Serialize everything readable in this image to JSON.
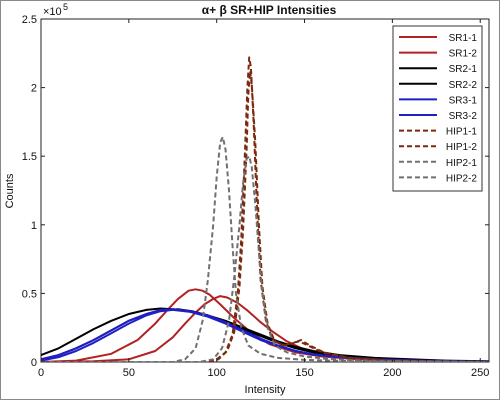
{
  "chart_data": {
    "type": "line",
    "title": "α+ β SR+HIP Intensities",
    "xlabel": "Intensity",
    "ylabel": "Counts",
    "y_exponent_label": "×10",
    "y_exponent_power": "5",
    "xlim": [
      0,
      255
    ],
    "ylim": [
      0,
      2.5
    ],
    "x_ticks": [
      0,
      50,
      100,
      150,
      200,
      250
    ],
    "y_ticks": [
      0,
      0.5,
      1,
      1.5,
      2,
      2.5
    ],
    "x_tick_labels": [
      "0",
      "50",
      "100",
      "150",
      "200",
      "250"
    ],
    "y_tick_labels": [
      "0",
      "0.5",
      "1",
      "1.5",
      "2",
      "2.5"
    ],
    "grid": false,
    "legend_position": "top-right",
    "series": [
      {
        "name": "SR1-1",
        "color": "#b22222",
        "dash": "solid",
        "points": [
          [
            0,
            0
          ],
          [
            20,
            0.01
          ],
          [
            40,
            0.06
          ],
          [
            55,
            0.16
          ],
          [
            65,
            0.28
          ],
          [
            72,
            0.38
          ],
          [
            78,
            0.46
          ],
          [
            84,
            0.52
          ],
          [
            88,
            0.53
          ],
          [
            92,
            0.52
          ],
          [
            96,
            0.49
          ],
          [
            102,
            0.42
          ],
          [
            110,
            0.32
          ],
          [
            120,
            0.21
          ],
          [
            130,
            0.13
          ],
          [
            145,
            0.07
          ],
          [
            160,
            0.04
          ],
          [
            180,
            0.02
          ],
          [
            200,
            0.01
          ],
          [
            230,
            0.005
          ],
          [
            255,
            0.003
          ]
        ]
      },
      {
        "name": "SR1-2",
        "color": "#b22222",
        "dash": "solid",
        "points": [
          [
            0,
            0
          ],
          [
            30,
            0.005
          ],
          [
            50,
            0.02
          ],
          [
            65,
            0.08
          ],
          [
            75,
            0.18
          ],
          [
            82,
            0.28
          ],
          [
            88,
            0.36
          ],
          [
            93,
            0.42
          ],
          [
            98,
            0.46
          ],
          [
            102,
            0.48
          ],
          [
            106,
            0.47
          ],
          [
            112,
            0.43
          ],
          [
            118,
            0.37
          ],
          [
            125,
            0.29
          ],
          [
            132,
            0.22
          ],
          [
            140,
            0.15
          ],
          [
            150,
            0.09
          ],
          [
            165,
            0.05
          ],
          [
            180,
            0.03
          ],
          [
            200,
            0.015
          ],
          [
            230,
            0.006
          ],
          [
            255,
            0.003
          ]
        ]
      },
      {
        "name": "SR2-1",
        "color": "#000000",
        "dash": "solid",
        "points": [
          [
            0,
            0.05
          ],
          [
            10,
            0.1
          ],
          [
            20,
            0.17
          ],
          [
            30,
            0.24
          ],
          [
            40,
            0.3
          ],
          [
            50,
            0.35
          ],
          [
            60,
            0.38
          ],
          [
            68,
            0.39
          ],
          [
            75,
            0.385
          ],
          [
            85,
            0.37
          ],
          [
            95,
            0.34
          ],
          [
            105,
            0.3
          ],
          [
            115,
            0.25
          ],
          [
            125,
            0.2
          ],
          [
            135,
            0.15
          ],
          [
            145,
            0.11
          ],
          [
            155,
            0.08
          ],
          [
            170,
            0.05
          ],
          [
            190,
            0.03
          ],
          [
            210,
            0.02
          ],
          [
            230,
            0.01
          ],
          [
            255,
            0.005
          ]
        ]
      },
      {
        "name": "SR2-2",
        "color": "#000000",
        "dash": "solid",
        "points": [
          [
            0,
            0.02
          ],
          [
            10,
            0.05
          ],
          [
            20,
            0.1
          ],
          [
            30,
            0.16
          ],
          [
            40,
            0.23
          ],
          [
            50,
            0.3
          ],
          [
            60,
            0.35
          ],
          [
            70,
            0.38
          ],
          [
            78,
            0.385
          ],
          [
            86,
            0.37
          ],
          [
            95,
            0.34
          ],
          [
            105,
            0.29
          ],
          [
            115,
            0.24
          ],
          [
            125,
            0.19
          ],
          [
            135,
            0.14
          ],
          [
            145,
            0.1
          ],
          [
            155,
            0.07
          ],
          [
            170,
            0.045
          ],
          [
            190,
            0.025
          ],
          [
            210,
            0.015
          ],
          [
            230,
            0.008
          ],
          [
            255,
            0.004
          ]
        ]
      },
      {
        "name": "SR3-1",
        "color": "#1f1fc8",
        "dash": "solid",
        "points": [
          [
            0,
            0.02
          ],
          [
            10,
            0.05
          ],
          [
            20,
            0.1
          ],
          [
            30,
            0.16
          ],
          [
            40,
            0.23
          ],
          [
            50,
            0.3
          ],
          [
            60,
            0.35
          ],
          [
            68,
            0.38
          ],
          [
            75,
            0.385
          ],
          [
            85,
            0.37
          ],
          [
            95,
            0.34
          ],
          [
            105,
            0.29
          ],
          [
            115,
            0.23
          ],
          [
            125,
            0.17
          ],
          [
            135,
            0.12
          ],
          [
            145,
            0.08
          ],
          [
            155,
            0.055
          ],
          [
            170,
            0.035
          ],
          [
            190,
            0.02
          ],
          [
            210,
            0.012
          ],
          [
            230,
            0.006
          ],
          [
            255,
            0.003
          ]
        ]
      },
      {
        "name": "SR3-2",
        "color": "#1f1fc8",
        "dash": "solid",
        "points": [
          [
            0,
            0.01
          ],
          [
            10,
            0.035
          ],
          [
            20,
            0.08
          ],
          [
            30,
            0.14
          ],
          [
            40,
            0.21
          ],
          [
            50,
            0.28
          ],
          [
            60,
            0.34
          ],
          [
            68,
            0.37
          ],
          [
            75,
            0.38
          ],
          [
            85,
            0.365
          ],
          [
            95,
            0.33
          ],
          [
            105,
            0.28
          ],
          [
            115,
            0.22
          ],
          [
            125,
            0.16
          ],
          [
            135,
            0.115
          ],
          [
            145,
            0.08
          ],
          [
            155,
            0.055
          ],
          [
            170,
            0.035
          ],
          [
            190,
            0.02
          ],
          [
            210,
            0.012
          ],
          [
            230,
            0.006
          ],
          [
            255,
            0.003
          ]
        ]
      },
      {
        "name": "HIP1-1",
        "color": "#7b2a0e",
        "dash": "dashed",
        "points": [
          [
            0,
            0
          ],
          [
            95,
            0
          ],
          [
            100,
            0.02
          ],
          [
            105,
            0.07
          ],
          [
            109,
            0.2
          ],
          [
            112,
            0.5
          ],
          [
            114,
            0.9
          ],
          [
            116,
            1.5
          ],
          [
            117.5,
            2.0
          ],
          [
            118.5,
            2.22
          ],
          [
            119.5,
            2.15
          ],
          [
            121,
            1.75
          ],
          [
            123,
            1.1
          ],
          [
            125,
            0.6
          ],
          [
            128,
            0.3
          ],
          [
            132,
            0.16
          ],
          [
            138,
            0.12
          ],
          [
            143,
            0.14
          ],
          [
            147,
            0.15
          ],
          [
            152,
            0.12
          ],
          [
            160,
            0.07
          ],
          [
            175,
            0.03
          ],
          [
            200,
            0.01
          ],
          [
            255,
            0
          ]
        ]
      },
      {
        "name": "HIP1-2",
        "color": "#7b2a0e",
        "dash": "dashed",
        "points": [
          [
            0,
            0
          ],
          [
            96,
            0
          ],
          [
            101,
            0.02
          ],
          [
            106,
            0.08
          ],
          [
            110,
            0.22
          ],
          [
            113,
            0.55
          ],
          [
            115,
            0.95
          ],
          [
            117,
            1.55
          ],
          [
            118,
            1.95
          ],
          [
            119,
            2.12
          ],
          [
            120,
            2.02
          ],
          [
            122,
            1.6
          ],
          [
            124,
            1.0
          ],
          [
            126,
            0.55
          ],
          [
            129,
            0.28
          ],
          [
            133,
            0.15
          ],
          [
            139,
            0.12
          ],
          [
            144,
            0.14
          ],
          [
            148,
            0.16
          ],
          [
            153,
            0.12
          ],
          [
            161,
            0.07
          ],
          [
            176,
            0.03
          ],
          [
            200,
            0.01
          ],
          [
            255,
            0
          ]
        ]
      },
      {
        "name": "HIP2-1",
        "color": "#707070",
        "dash": "dashed",
        "points": [
          [
            0,
            0
          ],
          [
            75,
            0
          ],
          [
            82,
            0.02
          ],
          [
            88,
            0.1
          ],
          [
            92,
            0.3
          ],
          [
            95,
            0.6
          ],
          [
            98,
            1.0
          ],
          [
            100,
            1.35
          ],
          [
            102,
            1.6
          ],
          [
            103.5,
            1.64
          ],
          [
            105,
            1.55
          ],
          [
            107,
            1.25
          ],
          [
            109,
            0.85
          ],
          [
            111,
            0.5
          ],
          [
            114,
            0.25
          ],
          [
            118,
            0.12
          ],
          [
            125,
            0.06
          ],
          [
            135,
            0.03
          ],
          [
            150,
            0.015
          ],
          [
            180,
            0.005
          ],
          [
            255,
            0
          ]
        ]
      },
      {
        "name": "HIP2-2",
        "color": "#707070",
        "dash": "dashed",
        "points": [
          [
            0,
            0
          ],
          [
            90,
            0
          ],
          [
            98,
            0.02
          ],
          [
            103,
            0.1
          ],
          [
            107,
            0.3
          ],
          [
            110,
            0.62
          ],
          [
            113,
            1.0
          ],
          [
            115,
            1.3
          ],
          [
            117,
            1.48
          ],
          [
            118.5,
            1.5
          ],
          [
            120,
            1.42
          ],
          [
            122,
            1.15
          ],
          [
            124,
            0.8
          ],
          [
            126,
            0.5
          ],
          [
            129,
            0.25
          ],
          [
            133,
            0.12
          ],
          [
            140,
            0.07
          ],
          [
            150,
            0.04
          ],
          [
            165,
            0.02
          ],
          [
            190,
            0.008
          ],
          [
            255,
            0
          ]
        ]
      }
    ]
  }
}
